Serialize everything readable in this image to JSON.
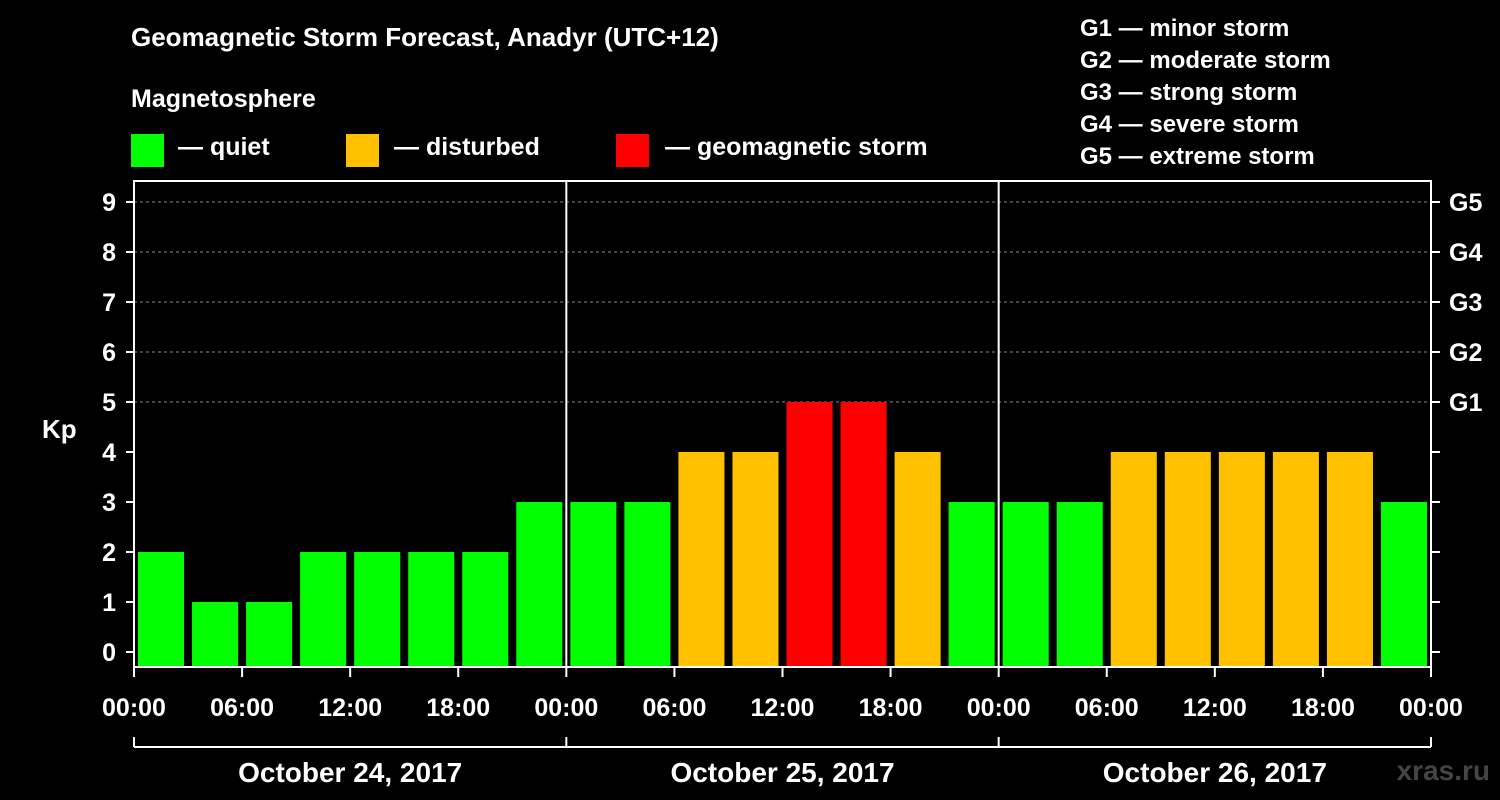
{
  "colors": {
    "quiet": "#00ff00",
    "disturbed": "#ffc000",
    "storm": "#ff0000"
  },
  "legend": {
    "magnetosphere": "Magnetosphere",
    "quiet": "— quiet",
    "disturbed": "— disturbed",
    "storm": "— geomagnetic storm"
  },
  "g_scale": [
    "G1 — minor storm",
    "G2 — moderate storm",
    "G3 — strong storm",
    "G4 — severe storm",
    "G5 — extreme storm"
  ],
  "watermark": "xras.ru",
  "chart_data": {
    "type": "bar",
    "title": "Geomagnetic Storm Forecast, Anadyr (UTC+12)",
    "ylabel": "Kp",
    "ylim": [
      0,
      9
    ],
    "yticks": [
      "0",
      "1",
      "2",
      "3",
      "4",
      "5",
      "6",
      "7",
      "8",
      "9"
    ],
    "right_ticks": [
      {
        "kp": 5,
        "label": "G1"
      },
      {
        "kp": 6,
        "label": "G2"
      },
      {
        "kp": 7,
        "label": "G3"
      },
      {
        "kp": 8,
        "label": "G4"
      },
      {
        "kp": 9,
        "label": "G5"
      }
    ],
    "xtick_labels": [
      "00:00",
      "06:00",
      "12:00",
      "18:00",
      "00:00",
      "06:00",
      "12:00",
      "18:00",
      "00:00",
      "06:00",
      "12:00",
      "18:00",
      "00:00"
    ],
    "days": [
      "October 24, 2017",
      "October 25, 2017",
      "October 26, 2017"
    ],
    "interval_hours": 3,
    "values": [
      2,
      1,
      1,
      2,
      2,
      2,
      2,
      3,
      3,
      3,
      4,
      4,
      5,
      5,
      4,
      3,
      3,
      3,
      4,
      4,
      4,
      4,
      4,
      3
    ],
    "thresholds": {
      "disturbed": 4,
      "storm": 5
    }
  }
}
